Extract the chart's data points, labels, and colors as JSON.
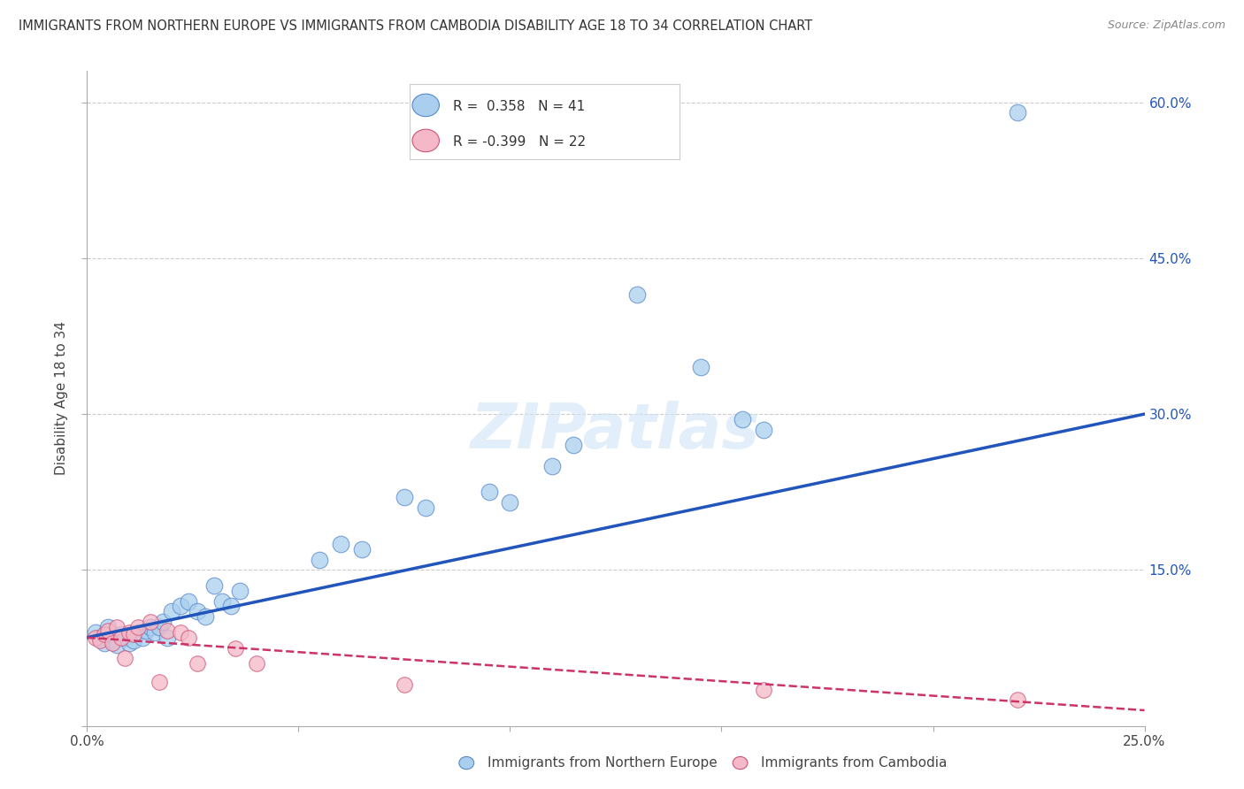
{
  "title": "IMMIGRANTS FROM NORTHERN EUROPE VS IMMIGRANTS FROM CAMBODIA DISABILITY AGE 18 TO 34 CORRELATION CHART",
  "source": "Source: ZipAtlas.com",
  "ylabel": "Disability Age 18 to 34",
  "xlim": [
    0.0,
    0.25
  ],
  "ylim": [
    0.0,
    0.63
  ],
  "legend_blue_R": "0.358",
  "legend_blue_N": "41",
  "legend_pink_R": "-0.399",
  "legend_pink_N": "22",
  "blue_color": "#aacfee",
  "blue_edge_color": "#5588cc",
  "pink_color": "#f5b8c8",
  "pink_edge_color": "#cc5577",
  "blue_line_color": "#2255bb",
  "pink_line_color": "#cc3366",
  "watermark": "ZIPatlas",
  "blue_points": [
    [
      0.002,
      0.09
    ],
    [
      0.003,
      0.085
    ],
    [
      0.004,
      0.08
    ],
    [
      0.005,
      0.095
    ],
    [
      0.006,
      0.082
    ],
    [
      0.007,
      0.078
    ],
    [
      0.008,
      0.088
    ],
    [
      0.009,
      0.085
    ],
    [
      0.01,
      0.08
    ],
    [
      0.011,
      0.082
    ],
    [
      0.012,
      0.09
    ],
    [
      0.013,
      0.085
    ],
    [
      0.014,
      0.092
    ],
    [
      0.015,
      0.095
    ],
    [
      0.016,
      0.09
    ],
    [
      0.017,
      0.095
    ],
    [
      0.018,
      0.1
    ],
    [
      0.019,
      0.085
    ],
    [
      0.02,
      0.11
    ],
    [
      0.022,
      0.115
    ],
    [
      0.024,
      0.12
    ],
    [
      0.026,
      0.11
    ],
    [
      0.028,
      0.105
    ],
    [
      0.03,
      0.135
    ],
    [
      0.032,
      0.12
    ],
    [
      0.034,
      0.115
    ],
    [
      0.036,
      0.13
    ],
    [
      0.055,
      0.16
    ],
    [
      0.06,
      0.175
    ],
    [
      0.065,
      0.17
    ],
    [
      0.075,
      0.22
    ],
    [
      0.08,
      0.21
    ],
    [
      0.095,
      0.225
    ],
    [
      0.1,
      0.215
    ],
    [
      0.11,
      0.25
    ],
    [
      0.115,
      0.27
    ],
    [
      0.13,
      0.415
    ],
    [
      0.145,
      0.345
    ],
    [
      0.155,
      0.295
    ],
    [
      0.16,
      0.285
    ],
    [
      0.22,
      0.59
    ]
  ],
  "pink_points": [
    [
      0.002,
      0.085
    ],
    [
      0.003,
      0.082
    ],
    [
      0.004,
      0.088
    ],
    [
      0.005,
      0.092
    ],
    [
      0.006,
      0.08
    ],
    [
      0.007,
      0.095
    ],
    [
      0.008,
      0.085
    ],
    [
      0.009,
      0.065
    ],
    [
      0.01,
      0.09
    ],
    [
      0.011,
      0.088
    ],
    [
      0.012,
      0.095
    ],
    [
      0.015,
      0.1
    ],
    [
      0.017,
      0.042
    ],
    [
      0.019,
      0.092
    ],
    [
      0.022,
      0.09
    ],
    [
      0.024,
      0.085
    ],
    [
      0.026,
      0.06
    ],
    [
      0.035,
      0.075
    ],
    [
      0.04,
      0.06
    ],
    [
      0.075,
      0.04
    ],
    [
      0.16,
      0.035
    ],
    [
      0.22,
      0.025
    ]
  ],
  "blue_size": 180,
  "pink_size": 160,
  "y_ticks": [
    0.0,
    0.15,
    0.3,
    0.45,
    0.6
  ],
  "y_tick_labels": [
    "",
    "15.0%",
    "30.0%",
    "45.0%",
    "60.0%"
  ],
  "x_tick_positions": [
    0.0,
    0.05,
    0.1,
    0.15,
    0.2,
    0.25
  ],
  "x_tick_labels": [
    "0.0%",
    "",
    "",
    "",
    "",
    "25.0%"
  ]
}
